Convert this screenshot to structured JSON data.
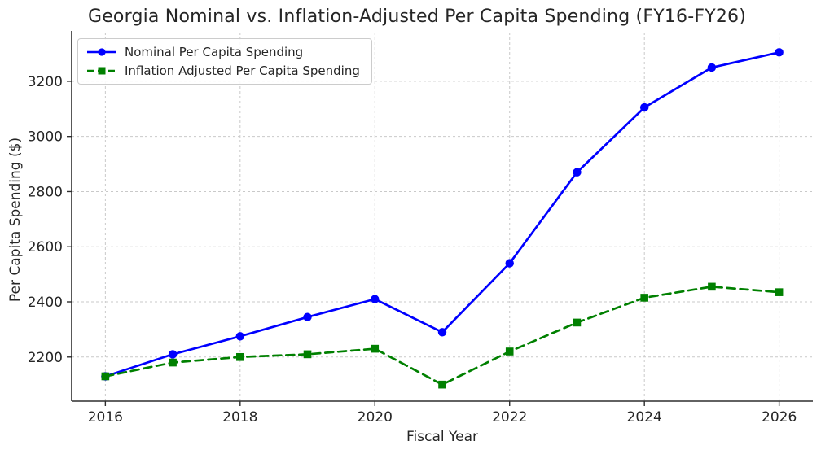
{
  "chart_data": {
    "type": "line",
    "title": "Georgia Nominal vs. Inflation-Adjusted Per Capita Spending (FY16-FY26)",
    "xlabel": "Fiscal Year",
    "ylabel": "Per Capita Spending ($)",
    "x": [
      2016,
      2017,
      2018,
      2019,
      2020,
      2021,
      2022,
      2023,
      2024,
      2025,
      2026
    ],
    "series": [
      {
        "name": "Nominal Per Capita Spending",
        "color": "#0000ff",
        "line_style": "solid",
        "marker": "circle",
        "values": [
          2130,
          2210,
          2275,
          2345,
          2410,
          2290,
          2540,
          2870,
          3105,
          3250,
          3305
        ]
      },
      {
        "name": "Inflation Adjusted Per Capita Spending",
        "color": "#008000",
        "line_style": "dashed",
        "marker": "square",
        "values": [
          2130,
          2180,
          2200,
          2210,
          2230,
          2100,
          2220,
          2325,
          2415,
          2455,
          2435
        ]
      }
    ],
    "xlim": [
      2015.5,
      2026.5
    ],
    "ylim": [
      2040,
      3365
    ],
    "xticks": [
      2016,
      2018,
      2020,
      2022,
      2024,
      2026
    ],
    "yticks": [
      2200,
      2400,
      2600,
      2800,
      3000,
      3200
    ],
    "grid": true,
    "legend_position": "upper-left",
    "colors": {
      "grid": "#c9c9c9",
      "text": "#262626",
      "spine": "#2e2e2e",
      "legend_border": "#cccccc",
      "background": "#ffffff"
    }
  }
}
